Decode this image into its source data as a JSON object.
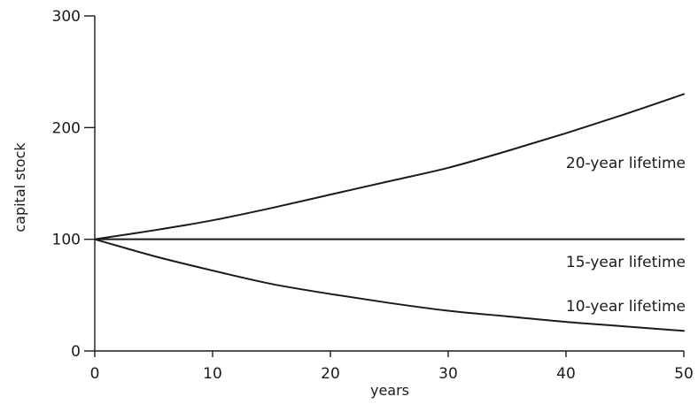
{
  "chart_data": {
    "type": "line",
    "title": "",
    "xlabel": "years",
    "ylabel": "capital stock",
    "xlim": [
      0,
      50
    ],
    "ylim": [
      0,
      300
    ],
    "xticks": [
      0,
      10,
      20,
      30,
      40,
      50
    ],
    "yticks": [
      0,
      100,
      200,
      300
    ],
    "xtick_labels": [
      "0",
      "10",
      "20",
      "30",
      "40",
      "50"
    ],
    "ytick_labels": [
      "0",
      "100",
      "200",
      "300"
    ],
    "grid": false,
    "legend": "none",
    "series": [
      {
        "name": "20-year lifetime",
        "x": [
          0,
          5,
          10,
          15,
          20,
          25,
          30,
          35,
          40,
          45,
          50
        ],
        "values": [
          100,
          108,
          117,
          128,
          140,
          152,
          164,
          179,
          195,
          212,
          230
        ]
      },
      {
        "name": "15-year lifetime",
        "x": [
          0,
          5,
          10,
          15,
          20,
          25,
          30,
          35,
          40,
          45,
          50
        ],
        "values": [
          100,
          100,
          100,
          100,
          100,
          100,
          100,
          100,
          100,
          100,
          100
        ]
      },
      {
        "name": "10-year lifetime",
        "x": [
          0,
          5,
          10,
          15,
          20,
          25,
          30,
          35,
          40,
          45,
          50
        ],
        "values": [
          100,
          85,
          72,
          60,
          51,
          43,
          36,
          31,
          26,
          22,
          18
        ]
      }
    ],
    "line_color": "#1a1a1a"
  }
}
